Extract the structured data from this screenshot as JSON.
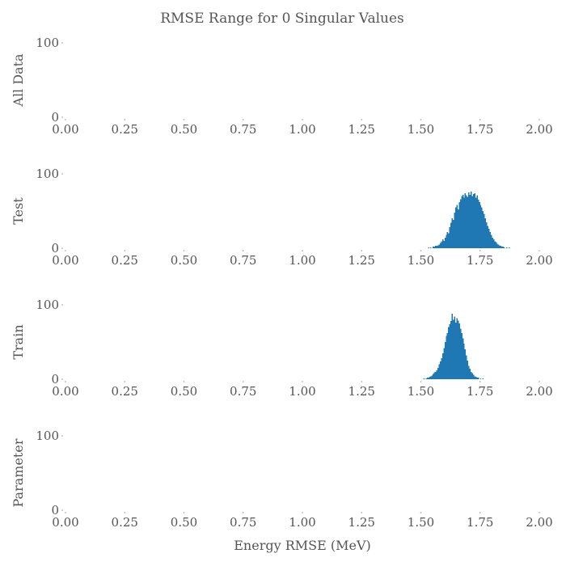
{
  "chart_data": {
    "type": "bar",
    "title": "RMSE Range for 0 Singular Values",
    "xlabel": "Energy RMSE (MeV)",
    "color": "#1f77b4",
    "xlim": [
      0,
      2
    ],
    "ylim": [
      0,
      100
    ],
    "xticks": [
      "0.00",
      "0.25",
      "0.50",
      "0.75",
      "1.00",
      "1.25",
      "1.50",
      "1.75",
      "2.00"
    ],
    "yticks": [
      "0",
      "100"
    ],
    "bin_width": 0.005,
    "grid": false,
    "panels": [
      {
        "label": "All Data",
        "bins": []
      },
      {
        "label": "Test",
        "bins": [
          {
            "x": 1.53,
            "y": 1
          },
          {
            "x": 1.54,
            "y": 1
          },
          {
            "x": 1.55,
            "y": 2
          },
          {
            "x": 1.555,
            "y": 2
          },
          {
            "x": 1.56,
            "y": 3
          },
          {
            "x": 1.565,
            "y": 3
          },
          {
            "x": 1.57,
            "y": 4
          },
          {
            "x": 1.575,
            "y": 5
          },
          {
            "x": 1.58,
            "y": 7
          },
          {
            "x": 1.585,
            "y": 9
          },
          {
            "x": 1.59,
            "y": 12
          },
          {
            "x": 1.595,
            "y": 10
          },
          {
            "x": 1.6,
            "y": 14
          },
          {
            "x": 1.605,
            "y": 18
          },
          {
            "x": 1.61,
            "y": 22
          },
          {
            "x": 1.615,
            "y": 20
          },
          {
            "x": 1.62,
            "y": 28
          },
          {
            "x": 1.625,
            "y": 34
          },
          {
            "x": 1.63,
            "y": 40
          },
          {
            "x": 1.635,
            "y": 38
          },
          {
            "x": 1.64,
            "y": 48
          },
          {
            "x": 1.645,
            "y": 55
          },
          {
            "x": 1.65,
            "y": 58
          },
          {
            "x": 1.655,
            "y": 52
          },
          {
            "x": 1.66,
            "y": 62
          },
          {
            "x": 1.665,
            "y": 66
          },
          {
            "x": 1.67,
            "y": 70
          },
          {
            "x": 1.675,
            "y": 72
          },
          {
            "x": 1.68,
            "y": 68
          },
          {
            "x": 1.685,
            "y": 74
          },
          {
            "x": 1.69,
            "y": 71
          },
          {
            "x": 1.695,
            "y": 69
          },
          {
            "x": 1.7,
            "y": 75
          },
          {
            "x": 1.705,
            "y": 72
          },
          {
            "x": 1.71,
            "y": 76
          },
          {
            "x": 1.715,
            "y": 70
          },
          {
            "x": 1.72,
            "y": 73
          },
          {
            "x": 1.725,
            "y": 74
          },
          {
            "x": 1.73,
            "y": 68
          },
          {
            "x": 1.735,
            "y": 71
          },
          {
            "x": 1.74,
            "y": 65
          },
          {
            "x": 1.745,
            "y": 62
          },
          {
            "x": 1.75,
            "y": 58
          },
          {
            "x": 1.755,
            "y": 55
          },
          {
            "x": 1.76,
            "y": 50
          },
          {
            "x": 1.765,
            "y": 46
          },
          {
            "x": 1.77,
            "y": 40
          },
          {
            "x": 1.775,
            "y": 35
          },
          {
            "x": 1.78,
            "y": 30
          },
          {
            "x": 1.785,
            "y": 26
          },
          {
            "x": 1.79,
            "y": 22
          },
          {
            "x": 1.795,
            "y": 18
          },
          {
            "x": 1.8,
            "y": 14
          },
          {
            "x": 1.805,
            "y": 12
          },
          {
            "x": 1.81,
            "y": 9
          },
          {
            "x": 1.815,
            "y": 8
          },
          {
            "x": 1.82,
            "y": 6
          },
          {
            "x": 1.825,
            "y": 5
          },
          {
            "x": 1.83,
            "y": 4
          },
          {
            "x": 1.835,
            "y": 3
          },
          {
            "x": 1.84,
            "y": 2
          },
          {
            "x": 1.845,
            "y": 2
          },
          {
            "x": 1.85,
            "y": 1
          },
          {
            "x": 1.86,
            "y": 1
          },
          {
            "x": 1.87,
            "y": 1
          }
        ]
      },
      {
        "label": "Train",
        "bins": [
          {
            "x": 1.51,
            "y": 1
          },
          {
            "x": 1.52,
            "y": 1
          },
          {
            "x": 1.525,
            "y": 2
          },
          {
            "x": 1.53,
            "y": 2
          },
          {
            "x": 1.535,
            "y": 3
          },
          {
            "x": 1.54,
            "y": 4
          },
          {
            "x": 1.545,
            "y": 5
          },
          {
            "x": 1.55,
            "y": 7
          },
          {
            "x": 1.555,
            "y": 9
          },
          {
            "x": 1.56,
            "y": 10
          },
          {
            "x": 1.565,
            "y": 12
          },
          {
            "x": 1.57,
            "y": 15
          },
          {
            "x": 1.575,
            "y": 20
          },
          {
            "x": 1.58,
            "y": 24
          },
          {
            "x": 1.585,
            "y": 28
          },
          {
            "x": 1.59,
            "y": 35
          },
          {
            "x": 1.595,
            "y": 42
          },
          {
            "x": 1.6,
            "y": 50
          },
          {
            "x": 1.605,
            "y": 58
          },
          {
            "x": 1.61,
            "y": 62
          },
          {
            "x": 1.615,
            "y": 70
          },
          {
            "x": 1.62,
            "y": 74
          },
          {
            "x": 1.625,
            "y": 78
          },
          {
            "x": 1.63,
            "y": 88
          },
          {
            "x": 1.635,
            "y": 80
          },
          {
            "x": 1.64,
            "y": 84
          },
          {
            "x": 1.645,
            "y": 76
          },
          {
            "x": 1.65,
            "y": 82
          },
          {
            "x": 1.655,
            "y": 79
          },
          {
            "x": 1.66,
            "y": 75
          },
          {
            "x": 1.665,
            "y": 68
          },
          {
            "x": 1.67,
            "y": 62
          },
          {
            "x": 1.675,
            "y": 55
          },
          {
            "x": 1.68,
            "y": 48
          },
          {
            "x": 1.685,
            "y": 40
          },
          {
            "x": 1.69,
            "y": 32
          },
          {
            "x": 1.695,
            "y": 25
          },
          {
            "x": 1.7,
            "y": 18
          },
          {
            "x": 1.705,
            "y": 14
          },
          {
            "x": 1.71,
            "y": 10
          },
          {
            "x": 1.715,
            "y": 8
          },
          {
            "x": 1.72,
            "y": 6
          },
          {
            "x": 1.725,
            "y": 4
          },
          {
            "x": 1.73,
            "y": 3
          },
          {
            "x": 1.735,
            "y": 2
          },
          {
            "x": 1.74,
            "y": 2
          },
          {
            "x": 1.75,
            "y": 1
          },
          {
            "x": 1.76,
            "y": 1
          }
        ]
      },
      {
        "label": "Parameter",
        "bins": []
      }
    ]
  }
}
